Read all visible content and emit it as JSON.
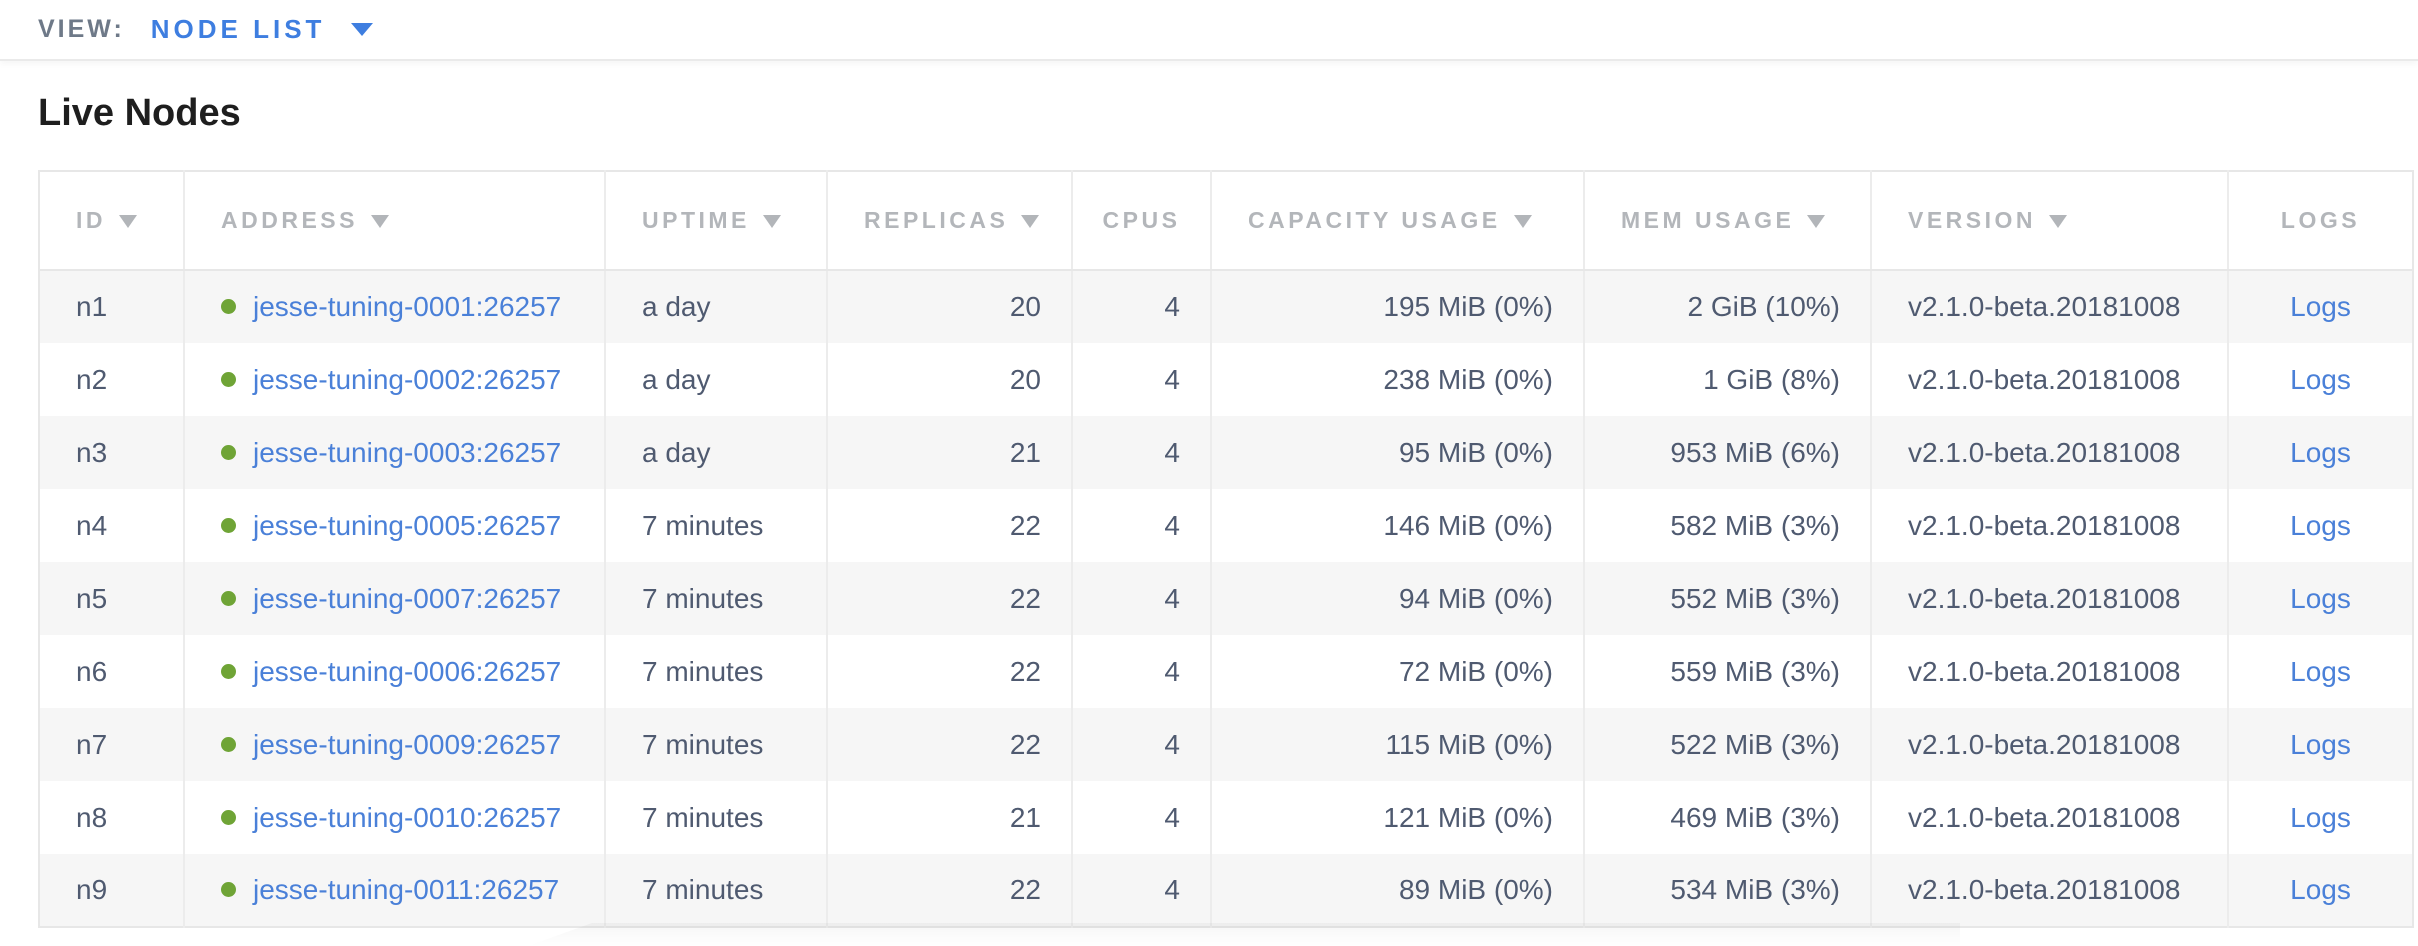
{
  "view_bar": {
    "label": "VIEW:",
    "selected": "NODE LIST"
  },
  "page": {
    "title": "Live Nodes"
  },
  "colors": {
    "accent_blue": "#3e7ee0",
    "link_blue": "#4a80d8",
    "live_green": "#6fa436",
    "header_gray": "#b3b6ba",
    "text_slate": "#4f5a70",
    "alt_row_bg": "#f6f6f6"
  },
  "table": {
    "columns": [
      {
        "key": "id",
        "label": "ID",
        "sortable": true,
        "align": "left",
        "header_align": "left"
      },
      {
        "key": "address",
        "label": "ADDRESS",
        "sortable": true,
        "align": "left",
        "header_align": "left"
      },
      {
        "key": "uptime",
        "label": "UPTIME",
        "sortable": true,
        "align": "left",
        "header_align": "left"
      },
      {
        "key": "replicas",
        "label": "REPLICAS",
        "sortable": true,
        "align": "right",
        "header_align": "left"
      },
      {
        "key": "cpus",
        "label": "CPUS",
        "sortable": false,
        "align": "right",
        "header_align": "center"
      },
      {
        "key": "capacity",
        "label": "CAPACITY USAGE",
        "sortable": true,
        "align": "right",
        "header_align": "left"
      },
      {
        "key": "mem",
        "label": "MEM USAGE",
        "sortable": true,
        "align": "right",
        "header_align": "left"
      },
      {
        "key": "version",
        "label": "VERSION",
        "sortable": true,
        "align": "left",
        "header_align": "left"
      },
      {
        "key": "logs",
        "label": "LOGS",
        "sortable": false,
        "align": "center",
        "header_align": "center"
      }
    ],
    "rows": [
      {
        "id": "n1",
        "status": "live",
        "address": "jesse-tuning-0001:26257",
        "uptime": "a day",
        "replicas": "20",
        "cpus": "4",
        "capacity": "195 MiB (0%)",
        "mem": "2 GiB (10%)",
        "version": "v2.1.0-beta.20181008",
        "logs": "Logs"
      },
      {
        "id": "n2",
        "status": "live",
        "address": "jesse-tuning-0002:26257",
        "uptime": "a day",
        "replicas": "20",
        "cpus": "4",
        "capacity": "238 MiB (0%)",
        "mem": "1 GiB (8%)",
        "version": "v2.1.0-beta.20181008",
        "logs": "Logs"
      },
      {
        "id": "n3",
        "status": "live",
        "address": "jesse-tuning-0003:26257",
        "uptime": "a day",
        "replicas": "21",
        "cpus": "4",
        "capacity": "95 MiB (0%)",
        "mem": "953 MiB (6%)",
        "version": "v2.1.0-beta.20181008",
        "logs": "Logs"
      },
      {
        "id": "n4",
        "status": "live",
        "address": "jesse-tuning-0005:26257",
        "uptime": "7 minutes",
        "replicas": "22",
        "cpus": "4",
        "capacity": "146 MiB (0%)",
        "mem": "582 MiB (3%)",
        "version": "v2.1.0-beta.20181008",
        "logs": "Logs"
      },
      {
        "id": "n5",
        "status": "live",
        "address": "jesse-tuning-0007:26257",
        "uptime": "7 minutes",
        "replicas": "22",
        "cpus": "4",
        "capacity": "94 MiB (0%)",
        "mem": "552 MiB (3%)",
        "version": "v2.1.0-beta.20181008",
        "logs": "Logs"
      },
      {
        "id": "n6",
        "status": "live",
        "address": "jesse-tuning-0006:26257",
        "uptime": "7 minutes",
        "replicas": "22",
        "cpus": "4",
        "capacity": "72 MiB (0%)",
        "mem": "559 MiB (3%)",
        "version": "v2.1.0-beta.20181008",
        "logs": "Logs"
      },
      {
        "id": "n7",
        "status": "live",
        "address": "jesse-tuning-0009:26257",
        "uptime": "7 minutes",
        "replicas": "22",
        "cpus": "4",
        "capacity": "115 MiB (0%)",
        "mem": "522 MiB (3%)",
        "version": "v2.1.0-beta.20181008",
        "logs": "Logs"
      },
      {
        "id": "n8",
        "status": "live",
        "address": "jesse-tuning-0010:26257",
        "uptime": "7 minutes",
        "replicas": "21",
        "cpus": "4",
        "capacity": "121 MiB (0%)",
        "mem": "469 MiB (3%)",
        "version": "v2.1.0-beta.20181008",
        "logs": "Logs"
      },
      {
        "id": "n9",
        "status": "live",
        "address": "jesse-tuning-0011:26257",
        "uptime": "7 minutes",
        "replicas": "22",
        "cpus": "4",
        "capacity": "89 MiB (0%)",
        "mem": "534 MiB (3%)",
        "version": "v2.1.0-beta.20181008",
        "logs": "Logs"
      }
    ]
  }
}
